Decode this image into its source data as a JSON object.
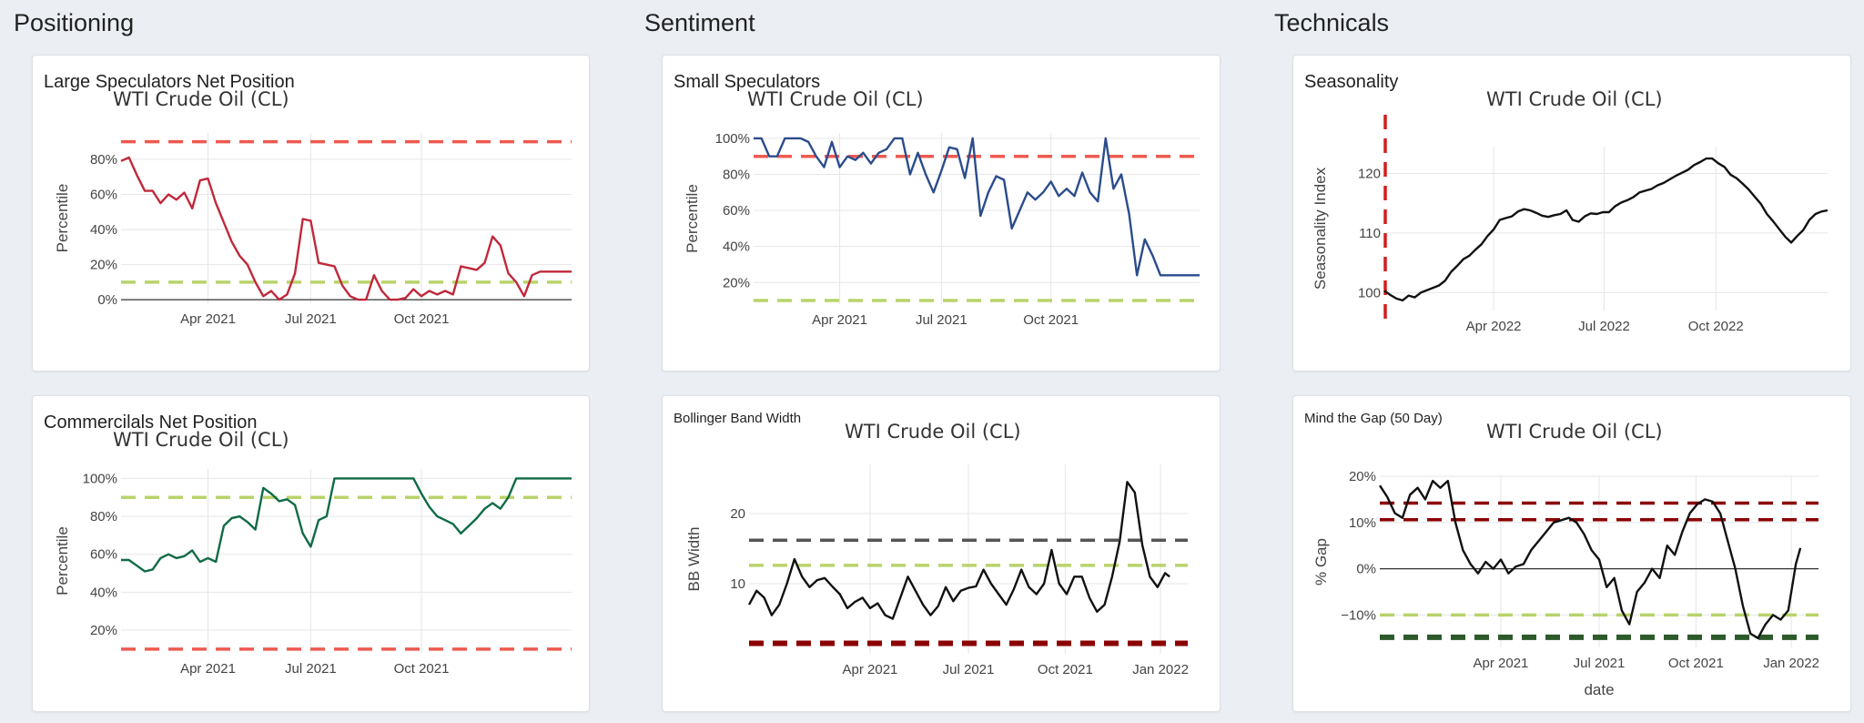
{
  "sections": {
    "positioning": "Positioning",
    "sentiment": "Sentiment",
    "technicals": "Technicals"
  },
  "cards": {
    "large_spec": {
      "title": "Large Speculators Net Position"
    },
    "small_spec": {
      "title": "Small Speculators"
    },
    "seasonality": {
      "title": "Seasonality"
    },
    "commercials": {
      "title": "Commercilals Net Position"
    },
    "bbw": {
      "title": "Bollinger Band Width"
    },
    "gap": {
      "title": "Mind the Gap (50 Day)"
    }
  },
  "colors": {
    "red_series": "#c0283b",
    "blue_series": "#2b4c8c",
    "green_series": "#106b45",
    "black_series": "#111111",
    "threshold_red": "#ee5a50",
    "threshold_yellow": "#b9d36a",
    "threshold_darkred": "#8b0000",
    "threshold_darkgreen": "#2d5a2a",
    "threshold_gray": "#555555"
  },
  "chart_data": [
    {
      "id": "large_spec",
      "type": "line",
      "title": "WTI Crude Oil (CL)",
      "ylabel": "Percentile",
      "xlabel": "",
      "xlim": [
        0,
        57
      ],
      "ylim": [
        -2,
        95
      ],
      "yticks": [
        0,
        20,
        40,
        60,
        80
      ],
      "ytick_labels": [
        "0%",
        "20%",
        "40%",
        "60%",
        "80%"
      ],
      "xticks": [
        {
          "x": 11,
          "label": "Apr 2021"
        },
        {
          "x": 24,
          "label": "Jul 2021"
        },
        {
          "x": 38,
          "label": "Oct 2021"
        }
      ],
      "zero_line": 0,
      "grid": true,
      "thresholds": [
        {
          "y": 90,
          "color": "threshold_red"
        },
        {
          "y": 10,
          "color": "threshold_yellow"
        }
      ],
      "series": [
        {
          "color": "red_series",
          "x": [
            0,
            1,
            2,
            3,
            4,
            5,
            6,
            7,
            8,
            9,
            10,
            11,
            12,
            13,
            14,
            15,
            16,
            17,
            18,
            19,
            20,
            21,
            22,
            23,
            24,
            25,
            26,
            27,
            28,
            29,
            30,
            31,
            32,
            33,
            34,
            35,
            36,
            37,
            38,
            39,
            40,
            41,
            42,
            43,
            44,
            45,
            46,
            47,
            48,
            49,
            50,
            51,
            52,
            53,
            54,
            55,
            56,
            57
          ],
          "values": [
            79,
            81,
            71,
            62,
            62,
            55,
            60,
            57,
            61,
            52,
            68,
            69,
            55,
            44,
            33,
            25,
            20,
            10,
            2,
            5,
            0,
            3,
            15,
            46,
            45,
            21,
            20,
            19,
            8,
            2,
            0,
            0,
            14,
            5,
            0,
            0,
            1,
            6,
            2,
            5,
            3,
            5,
            3,
            19,
            18,
            17,
            21,
            36,
            31,
            15,
            10,
            2,
            14,
            16,
            16,
            16,
            16,
            16
          ]
        }
      ]
    },
    {
      "id": "small_spec",
      "type": "line",
      "title": "WTI Crude Oil (CL)",
      "ylabel": "Percentile",
      "xlabel": "",
      "xlim": [
        0,
        57
      ],
      "ylim": [
        8,
        103
      ],
      "yticks": [
        20,
        40,
        60,
        80,
        100
      ],
      "ytick_labels": [
        "20%",
        "40%",
        "60%",
        "80%",
        "100%"
      ],
      "xticks": [
        {
          "x": 11,
          "label": "Apr 2021"
        },
        {
          "x": 24,
          "label": "Jul 2021"
        },
        {
          "x": 38,
          "label": "Oct 2021"
        }
      ],
      "grid": true,
      "thresholds": [
        {
          "y": 90,
          "color": "threshold_red"
        },
        {
          "y": 10,
          "color": "threshold_yellow"
        }
      ],
      "series": [
        {
          "color": "blue_series",
          "x": [
            0,
            1,
            2,
            3,
            4,
            5,
            6,
            7,
            8,
            9,
            10,
            11,
            12,
            13,
            14,
            15,
            16,
            17,
            18,
            19,
            20,
            21,
            22,
            23,
            24,
            25,
            26,
            27,
            28,
            29,
            30,
            31,
            32,
            33,
            34,
            35,
            36,
            37,
            38,
            39,
            40,
            41,
            42,
            43,
            44,
            45,
            46,
            47,
            48,
            49,
            50,
            51,
            52,
            53,
            54,
            55,
            56,
            57
          ],
          "values": [
            100,
            100,
            90,
            90,
            100,
            100,
            100,
            98,
            90,
            84,
            98,
            84,
            90,
            88,
            92,
            86,
            92,
            94,
            100,
            100,
            80,
            92,
            80,
            70,
            82,
            95,
            94,
            78,
            100,
            57,
            70,
            79,
            77,
            50,
            60,
            70,
            66,
            70,
            76,
            68,
            72,
            68,
            81,
            70,
            65,
            100,
            72,
            80,
            58,
            24,
            44,
            35,
            24,
            24,
            24,
            24,
            24,
            24
          ]
        }
      ]
    },
    {
      "id": "seasonality",
      "type": "line",
      "title": "WTI Crude Oil (CL)",
      "ylabel": "Seasonality Index",
      "xlabel": "",
      "xlim": [
        0,
        365
      ],
      "ylim": [
        97,
        124.5
      ],
      "yticks": [
        100,
        110,
        120
      ],
      "ytick_labels": [
        "100",
        "110",
        "120"
      ],
      "xticks": [
        {
          "x": 90,
          "label": "Apr 2022"
        },
        {
          "x": 181,
          "label": "Jul 2022"
        },
        {
          "x": 273,
          "label": "Oct 2022"
        }
      ],
      "grid": true,
      "vline": {
        "x": 0,
        "color": "threshold_darkred"
      },
      "series": [
        {
          "color": "black_series",
          "x": [
            0,
            5,
            10,
            15,
            20,
            25,
            30,
            35,
            40,
            45,
            50,
            55,
            60,
            65,
            70,
            75,
            80,
            85,
            90,
            95,
            100,
            105,
            110,
            115,
            120,
            125,
            130,
            135,
            140,
            145,
            150,
            155,
            160,
            165,
            170,
            175,
            180,
            185,
            190,
            195,
            200,
            205,
            210,
            215,
            220,
            225,
            230,
            235,
            240,
            245,
            250,
            255,
            260,
            265,
            270,
            275,
            280,
            285,
            290,
            295,
            300,
            305,
            310,
            315,
            320,
            325,
            330,
            335,
            340,
            345,
            350,
            355,
            360,
            365
          ],
          "values": [
            100.3,
            99.6,
            99,
            98.7,
            99.5,
            99.2,
            100,
            100.4,
            100.8,
            101.2,
            102,
            103.5,
            104.5,
            105.6,
            106.2,
            107.2,
            108.1,
            109.5,
            110.6,
            112.2,
            112.5,
            112.8,
            113.6,
            114,
            113.8,
            113.4,
            112.9,
            112.7,
            113,
            113.2,
            113.8,
            112.2,
            111.9,
            112.8,
            113.3,
            113.2,
            113.5,
            113.5,
            114.5,
            115.1,
            115.5,
            116,
            116.8,
            117.1,
            117.4,
            118,
            118.4,
            119,
            119.6,
            120.1,
            120.6,
            121.4,
            121.9,
            122.5,
            122.5,
            121.7,
            121.1,
            119.8,
            119.2,
            118.3,
            117.3,
            116.1,
            114.9,
            113.2,
            112,
            110.7,
            109.4,
            108.4,
            109.5,
            110.5,
            112.2,
            113.2,
            113.6,
            113.8
          ]
        }
      ]
    },
    {
      "id": "commercials",
      "type": "line",
      "title": "WTI Crude Oil (CL)",
      "ylabel": "Percentile",
      "xlabel": "",
      "xlim": [
        0,
        57
      ],
      "ylim": [
        8,
        105
      ],
      "yticks": [
        20,
        40,
        60,
        80,
        100
      ],
      "ytick_labels": [
        "20%",
        "40%",
        "60%",
        "80%",
        "100%"
      ],
      "xticks": [
        {
          "x": 11,
          "label": "Apr 2021"
        },
        {
          "x": 24,
          "label": "Jul 2021"
        },
        {
          "x": 38,
          "label": "Oct 2021"
        }
      ],
      "grid": true,
      "thresholds": [
        {
          "y": 90,
          "color": "threshold_yellow"
        },
        {
          "y": 10,
          "color": "threshold_red"
        }
      ],
      "series": [
        {
          "color": "green_series",
          "x": [
            0,
            1,
            2,
            3,
            4,
            5,
            6,
            7,
            8,
            9,
            10,
            11,
            12,
            13,
            14,
            15,
            16,
            17,
            18,
            19,
            20,
            21,
            22,
            23,
            24,
            25,
            26,
            27,
            28,
            29,
            30,
            31,
            32,
            33,
            34,
            35,
            36,
            37,
            38,
            39,
            40,
            41,
            42,
            43,
            44,
            45,
            46,
            47,
            48,
            49,
            50,
            51,
            52,
            53,
            54,
            55,
            56,
            57
          ],
          "values": [
            57,
            57,
            54,
            51,
            52,
            58,
            60,
            58,
            59,
            62,
            56,
            58,
            56,
            75,
            79,
            80,
            77,
            73,
            95,
            92,
            88,
            89,
            86,
            71,
            64,
            78,
            80,
            100,
            100,
            100,
            100,
            100,
            100,
            100,
            100,
            100,
            100,
            100,
            92,
            85,
            80,
            78,
            76,
            71,
            75,
            79,
            84,
            87,
            84,
            90,
            100,
            100,
            100,
            100,
            100,
            100,
            100,
            100
          ]
        }
      ]
    },
    {
      "id": "bbw",
      "type": "line",
      "title": "WTI Crude Oil (CL)",
      "ylabel": "BB Width",
      "xlabel": "",
      "xlim": [
        0,
        290
      ],
      "ylim": [
        0,
        27
      ],
      "yticks": [
        10,
        20
      ],
      "ytick_labels": [
        "10",
        "20"
      ],
      "xticks": [
        {
          "x": 80,
          "label": "Apr 2021"
        },
        {
          "x": 145,
          "label": "Jul 2021"
        },
        {
          "x": 209,
          "label": "Oct 2021"
        },
        {
          "x": 272,
          "label": "Jan 2022"
        }
      ],
      "grid": true,
      "thresholds": [
        {
          "y": 16.2,
          "color": "threshold_gray"
        },
        {
          "y": 12.6,
          "color": "threshold_yellow"
        },
        {
          "y": 1.5,
          "color": "threshold_darkred",
          "heavy": true
        }
      ],
      "series": [
        {
          "color": "black_series",
          "x": [
            0,
            5,
            10,
            15,
            20,
            25,
            30,
            35,
            40,
            45,
            50,
            55,
            60,
            65,
            70,
            75,
            80,
            85,
            90,
            95,
            100,
            105,
            110,
            115,
            120,
            125,
            130,
            135,
            140,
            145,
            150,
            155,
            160,
            165,
            170,
            175,
            180,
            185,
            190,
            195,
            200,
            205,
            210,
            215,
            220,
            225,
            230,
            235,
            240,
            245,
            250,
            255,
            260,
            265,
            270,
            275,
            278
          ],
          "values": [
            7,
            9,
            8,
            5.5,
            7,
            10,
            13.5,
            11,
            9.5,
            10.5,
            10.8,
            9.6,
            8.5,
            6.5,
            7.4,
            8,
            6.5,
            7.2,
            5.5,
            5,
            8,
            11,
            9,
            7,
            5.5,
            6.8,
            9.5,
            7.5,
            9,
            9.4,
            9.6,
            12,
            10,
            8.5,
            7,
            9.2,
            12,
            9.5,
            8.5,
            10,
            14.8,
            10,
            8.5,
            11,
            11,
            8,
            6,
            7,
            11,
            16,
            24.5,
            23,
            15.5,
            11,
            9.5,
            11.5,
            11
          ]
        }
      ]
    },
    {
      "id": "gap",
      "type": "line",
      "title": "WTI Crude Oil (CL)",
      "ylabel": "% Gap",
      "xlabel": "date",
      "xlim": [
        0,
        290
      ],
      "ylim": [
        -17,
        20
      ],
      "yticks": [
        -10,
        0,
        10,
        20
      ],
      "ytick_labels": [
        "−10%",
        "0%",
        "10%",
        "20%"
      ],
      "xticks": [
        {
          "x": 80,
          "label": "Apr 2021"
        },
        {
          "x": 145,
          "label": "Jul 2021"
        },
        {
          "x": 209,
          "label": "Oct 2021"
        },
        {
          "x": 272,
          "label": "Jan 2022"
        }
      ],
      "zero_line": 0,
      "grid": true,
      "thresholds": [
        {
          "y": 14.2,
          "color": "threshold_darkred"
        },
        {
          "y": 10.6,
          "color": "threshold_darkred"
        },
        {
          "y": -10,
          "color": "threshold_yellow"
        },
        {
          "y": -14.8,
          "color": "threshold_darkgreen",
          "heavy": true
        }
      ],
      "series": [
        {
          "color": "black_series",
          "x": [
            0,
            5,
            10,
            15,
            20,
            25,
            30,
            35,
            40,
            45,
            50,
            55,
            60,
            65,
            70,
            75,
            80,
            85,
            90,
            95,
            100,
            105,
            110,
            115,
            120,
            125,
            130,
            135,
            140,
            145,
            150,
            155,
            160,
            165,
            170,
            175,
            180,
            185,
            190,
            195,
            200,
            205,
            210,
            215,
            220,
            225,
            230,
            235,
            240,
            245,
            250,
            255,
            260,
            265,
            270,
            275,
            278
          ],
          "values": [
            18,
            15.5,
            12,
            11,
            16,
            17.5,
            15,
            19,
            17.5,
            19,
            10,
            4,
            1,
            -1,
            1.5,
            0,
            2,
            -1,
            0.5,
            1,
            4,
            6,
            8,
            10,
            10.5,
            11,
            10,
            7.5,
            4,
            2,
            -4,
            -2,
            -9,
            -12,
            -5,
            -3,
            0,
            -2,
            5,
            3,
            8,
            12,
            14,
            15,
            14.5,
            12,
            6,
            0,
            -8,
            -14,
            -15,
            -12,
            -10,
            -11,
            -9,
            1,
            4.5
          ]
        }
      ]
    }
  ]
}
